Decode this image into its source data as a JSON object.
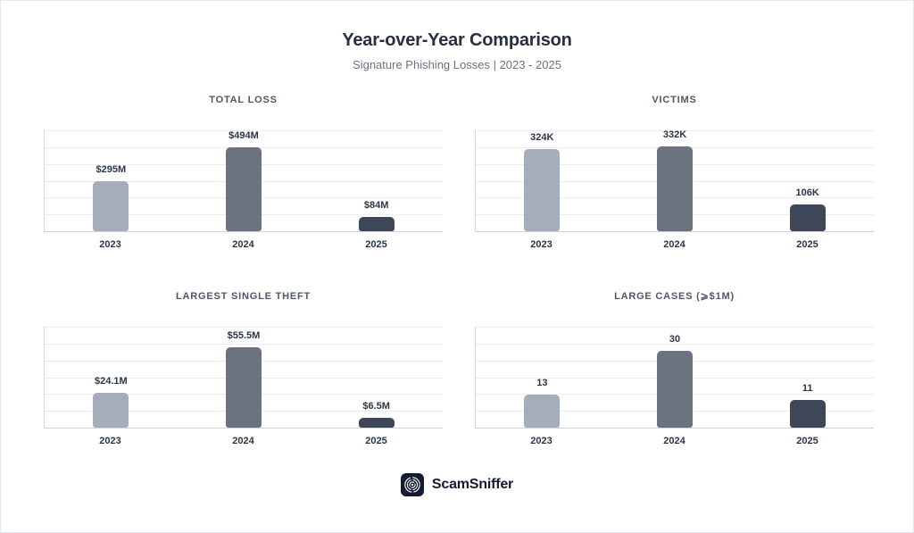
{
  "header": {
    "title": "Year-over-Year Comparison",
    "subtitle": "Signature Phishing Losses | 2023 - 2025"
  },
  "colors": {
    "bars": [
      "#a6adba",
      "#6b7280",
      "#3d4758"
    ],
    "title_text": "#28303f",
    "subtitle_text": "#6b7280",
    "chart_title_text": "#4d5767",
    "label_text": "#2b3648",
    "gridline": "#ededf0",
    "axis_line": "#d4d7dc",
    "logo_background": "#141c33"
  },
  "chart_data": [
    {
      "type": "bar",
      "title": "TOTAL LOSS",
      "categories": [
        "2023",
        "2024",
        "2025"
      ],
      "values": [
        295,
        494,
        84
      ],
      "labels": [
        "$295M",
        "$494M",
        "$84M"
      ],
      "ylim": [
        0,
        600
      ],
      "grid": true,
      "legend": "none"
    },
    {
      "type": "bar",
      "title": "VICTIMS",
      "categories": [
        "2023",
        "2024",
        "2025"
      ],
      "values": [
        324,
        332,
        106
      ],
      "labels": [
        "324K",
        "332K",
        "106K"
      ],
      "ylim": [
        0,
        400
      ],
      "grid": true,
      "legend": "none"
    },
    {
      "type": "bar",
      "title": "LARGEST SINGLE THEFT",
      "categories": [
        "2023",
        "2024",
        "2025"
      ],
      "values": [
        24.1,
        55.5,
        6.5
      ],
      "labels": [
        "$24.1M",
        "$55.5M",
        "$6.5M"
      ],
      "ylim": [
        0,
        70
      ],
      "grid": true,
      "legend": "none"
    },
    {
      "type": "bar",
      "title": "LARGE CASES (⩾$1M)",
      "categories": [
        "2023",
        "2024",
        "2025"
      ],
      "values": [
        13,
        30,
        11
      ],
      "labels": [
        "13",
        "30",
        "11"
      ],
      "ylim": [
        0,
        40
      ],
      "grid": true,
      "legend": "none"
    }
  ],
  "footer": {
    "brand": "ScamSniffer"
  }
}
